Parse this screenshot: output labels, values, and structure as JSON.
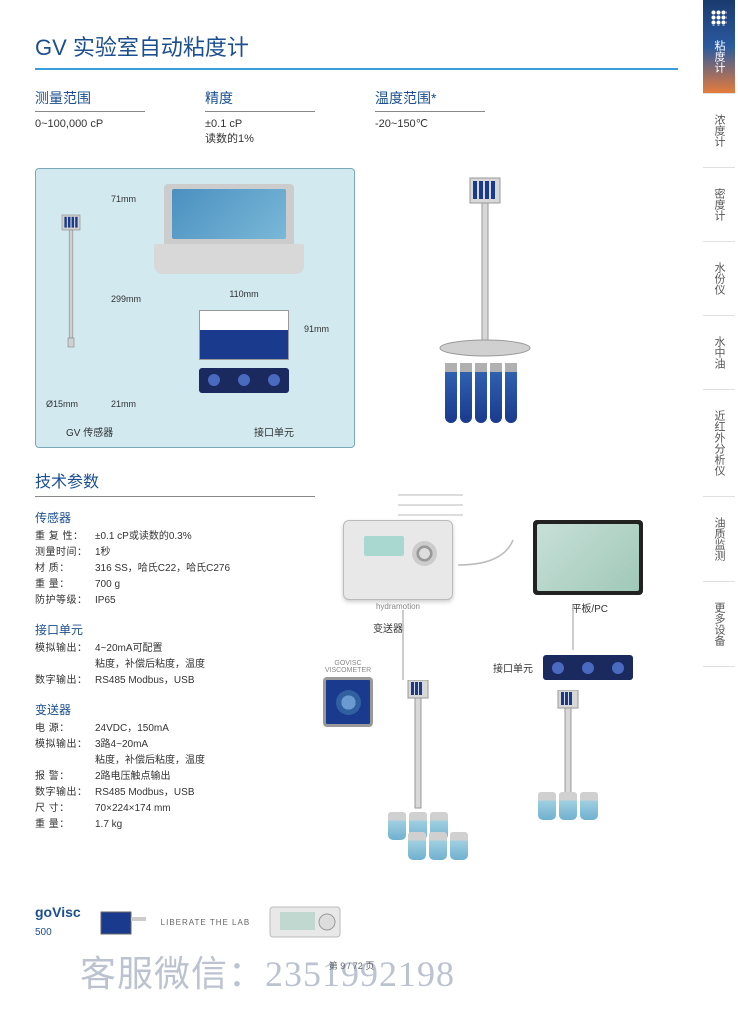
{
  "title": "GV 实验室自动粘度计",
  "specs": {
    "range": {
      "label": "测量范围",
      "value": "0~100,000 cP"
    },
    "accuracy": {
      "label": "精度",
      "value": "±0.1 cP\n读数的1%"
    },
    "temp": {
      "label": "温度范围*",
      "value": "-20~150℃"
    }
  },
  "diagram": {
    "sensor_label": "GV 传感器",
    "interface_label": "接口单元",
    "dim_height": "299mm",
    "dim_top": "71mm",
    "dim_bottom": "21mm",
    "dim_diameter": "Ø15mm",
    "dim_unit_w": "110mm",
    "dim_unit_h": "91mm"
  },
  "tech": {
    "title": "技术参数",
    "sensor": {
      "title": "传感器",
      "rows": [
        {
          "k": "重 复 性：",
          "v": "±0.1 cP或读数的0.3%"
        },
        {
          "k": "测量时间：",
          "v": "1秒"
        },
        {
          "k": "材    质：",
          "v": "316 SS，哈氏C22，哈氏C276"
        },
        {
          "k": "重    量：",
          "v": "700 g"
        },
        {
          "k": "防护等级：",
          "v": "IP65"
        }
      ]
    },
    "interface": {
      "title": "接口单元",
      "rows": [
        {
          "k": "模拟输出：",
          "v": "4~20mA可配置"
        },
        {
          "k": "",
          "v": "粘度，补偿后粘度，温度"
        },
        {
          "k": "数字输出：",
          "v": "RS485 Modbus，USB"
        }
      ]
    },
    "transmitter": {
      "title": "变送器",
      "rows": [
        {
          "k": "电    源：",
          "v": "24VDC，150mA"
        },
        {
          "k": "模拟输出：",
          "v": "3路4~20mA"
        },
        {
          "k": "",
          "v": "粘度，补偿后粘度，温度"
        },
        {
          "k": "报    警：",
          "v": "2路电压触点输出"
        },
        {
          "k": "数字输出：",
          "v": "RS485 Modbus，USB"
        },
        {
          "k": "尺    寸：",
          "v": "70×224×174 mm"
        },
        {
          "k": "重    量：",
          "v": "1.7 kg"
        }
      ]
    }
  },
  "system": {
    "transmitter_label": "变送器",
    "transmitter_brand": "hydramotion",
    "tablet_label": "平板/PC",
    "interface_label": "接口单元",
    "viscometer_label": "GOVISC\nVISCOMETER"
  },
  "bottom": {
    "logo": "goVisc",
    "logo_num": "500",
    "tagline": "LIBERATE THE LAB"
  },
  "page_num": "第 9 / 72 页",
  "watermark": "客服微信：2351992198",
  "tabs": [
    "粘度计",
    "浓度计",
    "密度计",
    "水份仪",
    "水中油",
    "近红外分析仪",
    "油质监测",
    "更多设备"
  ],
  "colors": {
    "primary_blue": "#1b4f8f",
    "accent_cyan": "#3a9fd8",
    "box_bg": "#d1e9ef",
    "tab_orange": "#e67b3c",
    "tab_navy": "#1a3a6e"
  }
}
